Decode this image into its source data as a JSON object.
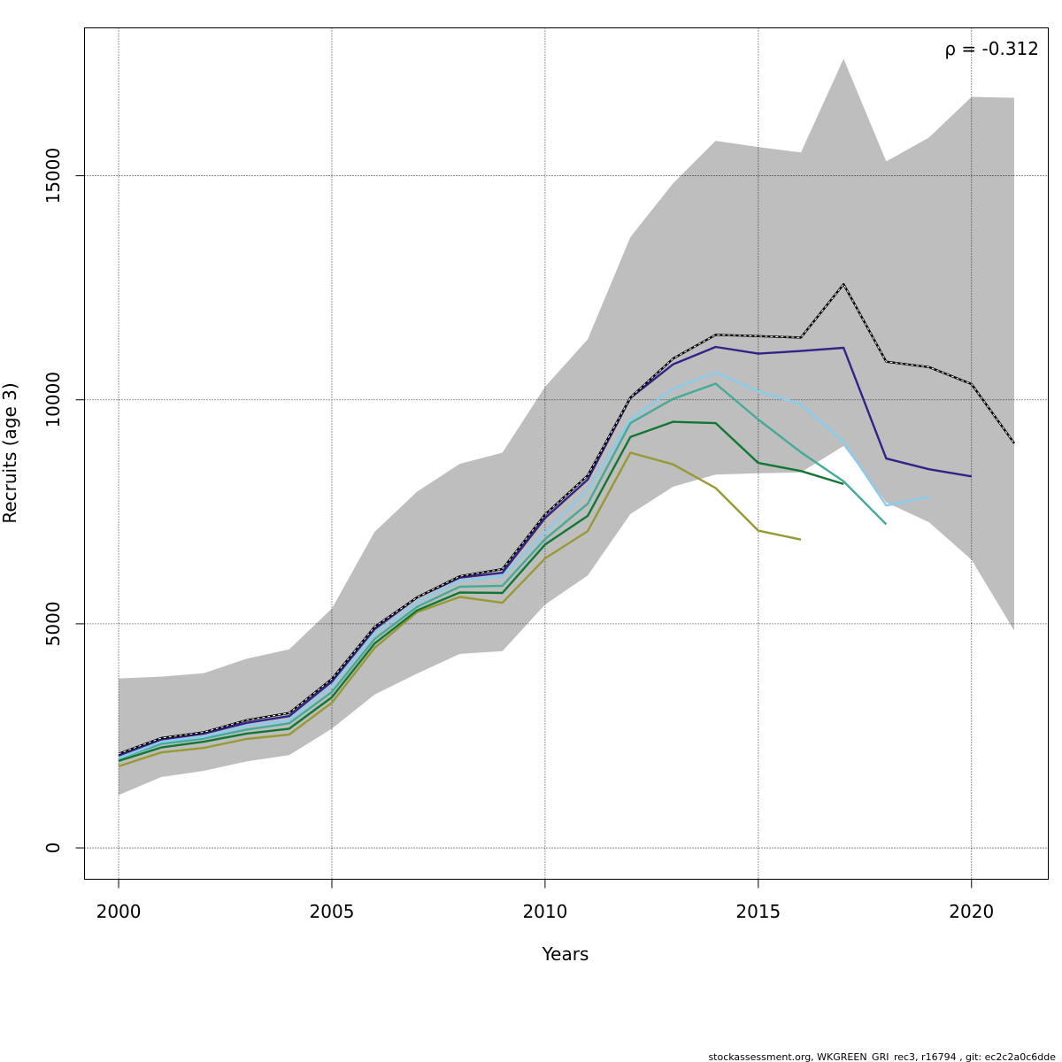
{
  "chart_data": {
    "type": "line",
    "xlabel": "Years",
    "ylabel": "Recruits (age 3)",
    "xlim": [
      1999.2,
      2021.8
    ],
    "ylim": [
      -700,
      18300
    ],
    "x_ticks": [
      2000,
      2005,
      2010,
      2015,
      2020
    ],
    "x_tick_labels": [
      "2000",
      "2005",
      "2010",
      "2015",
      "2020"
    ],
    "y_ticks": [
      0,
      5000,
      10000,
      15000
    ],
    "y_tick_labels": [
      "0",
      "5000",
      "10000",
      "15000"
    ],
    "grid": true,
    "annotation": "ρ = -0.312",
    "confidence_band": {
      "x": [
        2000,
        2001,
        2002,
        2003,
        2004,
        2005,
        2006,
        2007,
        2008,
        2009,
        2010,
        2011,
        2012,
        2013,
        2014,
        2015,
        2016,
        2017,
        2018,
        2019,
        2020,
        2021
      ],
      "upper": [
        3780,
        3820,
        3900,
        4220,
        4430,
        5340,
        7050,
        7950,
        8570,
        8820,
        10290,
        11350,
        13630,
        14830,
        15780,
        15640,
        15520,
        17610,
        15320,
        15850,
        16760,
        16740
      ],
      "lower": [
        1180,
        1580,
        1720,
        1930,
        2070,
        2660,
        3420,
        3890,
        4330,
        4390,
        5430,
        6080,
        7450,
        8060,
        8330,
        8360,
        8380,
        8970,
        7710,
        7270,
        6430,
        4850
      ]
    },
    "series": [
      {
        "x": [
          2000,
          2001,
          2002,
          2003,
          2004,
          2005,
          2006,
          2007,
          2008,
          2009,
          2010,
          2011,
          2012,
          2013,
          2014,
          2015,
          2016,
          2017,
          2018,
          2019,
          2020,
          2021
        ],
        "values": [
          2100,
          2450,
          2580,
          2850,
          3010,
          3770,
          4930,
          5590,
          6060,
          6220,
          7440,
          8310,
          10050,
          10920,
          11450,
          11420,
          11390,
          12580,
          10850,
          10730,
          10350,
          9030
        ]
      },
      {
        "x": [
          2000,
          2001,
          2002,
          2003,
          2004,
          2005,
          2006,
          2007,
          2008,
          2009,
          2010,
          2011,
          2012,
          2013,
          2014,
          2015,
          2016,
          2017,
          2018,
          2019,
          2020
        ],
        "values": [
          2060,
          2420,
          2550,
          2790,
          2940,
          3710,
          4880,
          5590,
          6030,
          6140,
          7360,
          8220,
          10040,
          10790,
          11180,
          11030,
          11090,
          11160,
          8690,
          8450,
          8290
        ]
      },
      {
        "x": [
          2000,
          2001,
          2002,
          2003,
          2004,
          2005,
          2006,
          2007,
          2008,
          2009,
          2010,
          2011,
          2012,
          2013,
          2014,
          2015,
          2016,
          2017,
          2018,
          2019
        ],
        "values": [
          2000,
          2370,
          2480,
          2720,
          2850,
          3610,
          4780,
          5480,
          5960,
          6060,
          7040,
          7980,
          9560,
          10240,
          10610,
          10190,
          9900,
          9060,
          7640,
          7830
        ]
      },
      {
        "x": [
          2000,
          2001,
          2002,
          2003,
          2004,
          2005,
          2006,
          2007,
          2008,
          2009,
          2010,
          2011,
          2012,
          2013,
          2014,
          2015,
          2016,
          2017,
          2018
        ],
        "values": [
          1990,
          2320,
          2440,
          2640,
          2780,
          3480,
          4660,
          5380,
          5830,
          5850,
          6890,
          7680,
          9480,
          10020,
          10360,
          9560,
          8830,
          8180,
          7220
        ]
      },
      {
        "x": [
          2000,
          2001,
          2002,
          2003,
          2004,
          2005,
          2006,
          2007,
          2008,
          2009,
          2010,
          2011,
          2012,
          2013,
          2014,
          2015,
          2016,
          2017
        ],
        "values": [
          1940,
          2240,
          2370,
          2550,
          2660,
          3360,
          4560,
          5300,
          5700,
          5690,
          6770,
          7410,
          9170,
          9510,
          9480,
          8590,
          8410,
          8120
        ]
      },
      {
        "x": [
          2000,
          2001,
          2002,
          2003,
          2004,
          2005,
          2006,
          2007,
          2008,
          2009,
          2010,
          2011,
          2012,
          2013,
          2014,
          2015,
          2016
        ],
        "values": [
          1820,
          2130,
          2230,
          2430,
          2530,
          3240,
          4460,
          5260,
          5600,
          5470,
          6460,
          7070,
          8820,
          8560,
          8030,
          7080,
          6880
        ]
      }
    ],
    "colors": {
      "band": "#bebebe",
      "series": [
        "#000000",
        "#332288",
        "#88CCEE",
        "#44AA99",
        "#117733",
        "#999933"
      ]
    }
  },
  "footer": "stockassessment.org, WKGREEN_GRI_rec3, r16794 , git: ec2c2a0c6dde"
}
